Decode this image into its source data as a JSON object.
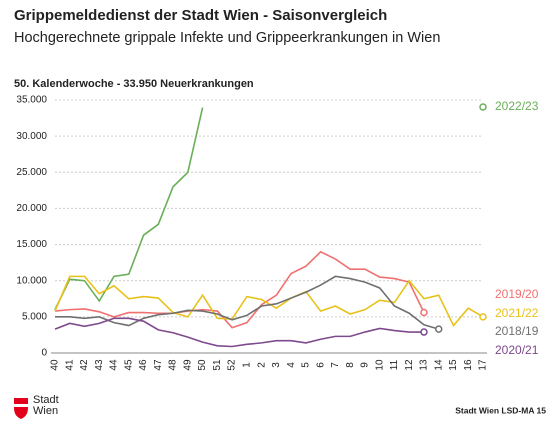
{
  "header": {
    "logo": "Stadt\nWien",
    "source": "Stadt Wien LSD-MA 15"
  },
  "chart_data": {
    "type": "line",
    "title": "Grippemeldedienst der Stadt Wien - Saisonvergleich",
    "subtitle": "Hochgerechnete grippale Infekte und Grippeerkrankungen in Wien",
    "annotation": "50. Kalenderwoche - 33.950 Neuerkrankungen",
    "categories": [
      "40",
      "41",
      "42",
      "43",
      "44",
      "45",
      "46",
      "47",
      "48",
      "49",
      "50",
      "51",
      "52",
      "1",
      "2",
      "3",
      "4",
      "5",
      "6",
      "7",
      "8",
      "9",
      "10",
      "11",
      "12",
      "13",
      "14",
      "15",
      "16",
      "17"
    ],
    "ylim": [
      0,
      35000
    ],
    "yticks": [
      0,
      {
        "value": 5000,
        "label": "5.000"
      },
      {
        "value": 10000,
        "label": "10.000"
      },
      {
        "value": 15000,
        "label": "15.000"
      },
      {
        "value": 20000,
        "label": "20.000"
      },
      {
        "value": 25000,
        "label": "25.000"
      },
      {
        "value": 30000,
        "label": "30.000"
      },
      {
        "value": 35000,
        "label": "35.000"
      }
    ],
    "grid": true,
    "series": [
      {
        "name": "2022/23",
        "color": "#6aaf5a",
        "values": [
          6000,
          10200,
          10000,
          7200,
          10600,
          10900,
          16300,
          17800,
          23000,
          25000,
          33950,
          null,
          null,
          null,
          null,
          null,
          null,
          null,
          null,
          null,
          null,
          null,
          null,
          null,
          null,
          null,
          null,
          null,
          null,
          null
        ]
      },
      {
        "name": "2019/20",
        "color": "#f07070",
        "values": [
          5800,
          6000,
          6100,
          5700,
          5000,
          5600,
          5600,
          5500,
          5500,
          5800,
          6000,
          5800,
          3500,
          4200,
          6700,
          8000,
          11000,
          12000,
          14000,
          13000,
          11600,
          11600,
          10500,
          10300,
          9800,
          5600,
          null,
          null,
          null,
          null
        ]
      },
      {
        "name": "2021/22",
        "color": "#e8c21a",
        "values": [
          5800,
          10600,
          10600,
          8200,
          9300,
          7500,
          7800,
          7600,
          5600,
          5000,
          8000,
          4800,
          4700,
          7800,
          7400,
          6200,
          7600,
          8500,
          5800,
          6500,
          5400,
          6000,
          7300,
          7000,
          10000,
          7500,
          8000,
          3800,
          6200,
          5000
        ]
      },
      {
        "name": "2018/19",
        "color": "#707070",
        "values": [
          5000,
          5000,
          4800,
          5000,
          4200,
          3800,
          4800,
          5300,
          5500,
          5900,
          5800,
          5400,
          4600,
          5200,
          6500,
          6800,
          7600,
          8400,
          9400,
          10600,
          10300,
          9800,
          9000,
          6500,
          5500,
          3900,
          3300,
          null,
          null,
          null
        ]
      },
      {
        "name": "2020/21",
        "color": "#7d4a8c",
        "values": [
          3300,
          4100,
          3700,
          4100,
          4800,
          4800,
          4400,
          3200,
          2800,
          2200,
          1500,
          1000,
          900,
          1200,
          1400,
          1700,
          1700,
          1400,
          1900,
          2300,
          2300,
          2900,
          3400,
          3100,
          2900,
          2900,
          null,
          null,
          null,
          null
        ]
      }
    ]
  }
}
